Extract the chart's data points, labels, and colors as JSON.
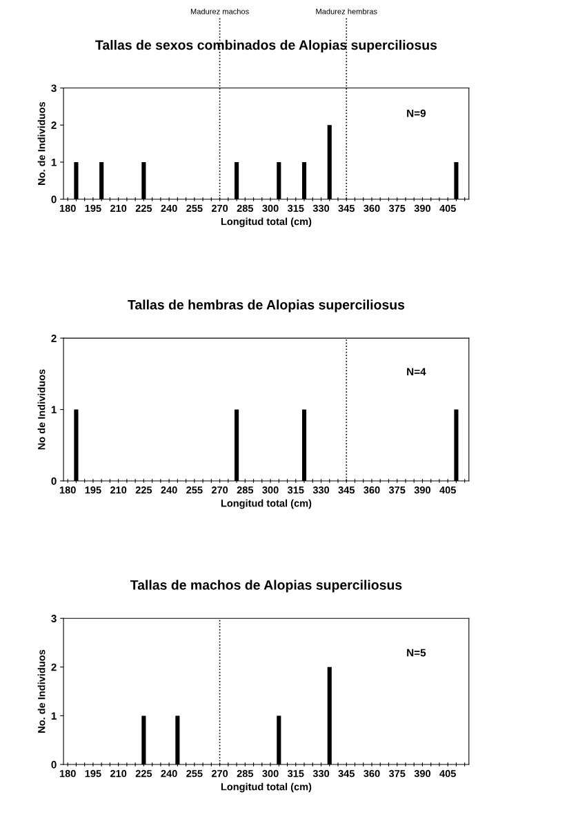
{
  "chart_data": [
    {
      "type": "bar",
      "title": "Tallas de sexos combinados de Alopias superciliosus",
      "xlabel": "Longitud total (cm)",
      "ylabel": "No. de Individuos",
      "categories": [
        "180",
        null,
        null,
        "195",
        null,
        null,
        "210",
        null,
        null,
        "225",
        null,
        null,
        "240",
        null,
        null,
        "255",
        null,
        null,
        "270",
        null,
        null,
        "285",
        null,
        null,
        "300",
        null,
        null,
        "315",
        null,
        null,
        "330",
        null,
        null,
        "345",
        null,
        null,
        "360",
        null,
        null,
        "375",
        null,
        null,
        "390",
        null,
        null,
        "405",
        null,
        null
      ],
      "values": [
        0,
        1,
        0,
        0,
        1,
        0,
        0,
        0,
        0,
        1,
        0,
        0,
        0,
        0,
        0,
        0,
        0,
        0,
        0,
        0,
        1,
        0,
        0,
        0,
        0,
        1,
        0,
        0,
        1,
        0,
        0,
        2,
        0,
        0,
        0,
        0,
        0,
        0,
        0,
        0,
        0,
        0,
        0,
        0,
        0,
        0,
        1,
        0
      ],
      "color": "#000000",
      "ylim": [
        0,
        3
      ],
      "yticks": [
        0,
        1,
        2,
        3
      ],
      "grid": false,
      "legend": false,
      "ref_lines": [
        {
          "axis": "x",
          "value": "270",
          "label": "Madurez machos",
          "color": "#000000",
          "line_style": "dotted"
        },
        {
          "axis": "x",
          "value": "345",
          "label": "Madurez hembras",
          "color": "#000000",
          "line_style": "dotted"
        }
      ],
      "annotations": [
        "N=9"
      ]
    },
    {
      "type": "bar",
      "title": "Tallas de hembras de Alopias superciliosus",
      "xlabel": "Longitud total (cm)",
      "ylabel": "No de Individuos",
      "categories": [
        "180",
        null,
        null,
        "195",
        null,
        null,
        "210",
        null,
        null,
        "225",
        null,
        null,
        "240",
        null,
        null,
        "255",
        null,
        null,
        "270",
        null,
        null,
        "285",
        null,
        null,
        "300",
        null,
        null,
        "315",
        null,
        null,
        "330",
        null,
        null,
        "345",
        null,
        null,
        "360",
        null,
        null,
        "375",
        null,
        null,
        "390",
        null,
        null,
        "405",
        null,
        null
      ],
      "values": [
        0,
        1,
        0,
        0,
        0,
        0,
        0,
        0,
        0,
        0,
        0,
        0,
        0,
        0,
        0,
        0,
        0,
        0,
        0,
        0,
        1,
        0,
        0,
        0,
        0,
        0,
        0,
        0,
        1,
        0,
        0,
        0,
        0,
        0,
        0,
        0,
        0,
        0,
        0,
        0,
        0,
        0,
        0,
        0,
        0,
        0,
        1,
        0
      ],
      "color": "#000000",
      "ylim": [
        0,
        2
      ],
      "yticks": [
        0,
        1,
        2
      ],
      "grid": false,
      "legend": false,
      "ref_lines": [
        {
          "axis": "x",
          "value": "345",
          "color": "#000000",
          "line_style": "dotted"
        }
      ],
      "annotations": [
        "N=4"
      ]
    },
    {
      "type": "bar",
      "title": "Tallas de machos de Alopias superciliosus",
      "xlabel": "Longitud total (cm)",
      "ylabel": "No. de Individuos",
      "categories": [
        "180",
        null,
        null,
        "195",
        null,
        null,
        "210",
        null,
        null,
        "225",
        null,
        null,
        "240",
        null,
        null,
        "255",
        null,
        null,
        "270",
        null,
        null,
        "285",
        null,
        null,
        "300",
        null,
        null,
        "315",
        null,
        null,
        "330",
        null,
        null,
        "345",
        null,
        null,
        "360",
        null,
        null,
        "375",
        null,
        null,
        "390",
        null,
        null,
        "405",
        null,
        null
      ],
      "values": [
        0,
        0,
        0,
        0,
        0,
        0,
        0,
        0,
        0,
        1,
        0,
        0,
        0,
        1,
        0,
        0,
        0,
        0,
        0,
        0,
        0,
        0,
        0,
        0,
        0,
        1,
        0,
        0,
        0,
        0,
        0,
        2,
        0,
        0,
        0,
        0,
        0,
        0,
        0,
        0,
        0,
        0,
        0,
        0,
        0,
        0,
        0,
        0
      ],
      "color": "#000000",
      "ylim": [
        0,
        3
      ],
      "yticks": [
        0,
        1,
        2,
        3
      ],
      "grid": false,
      "legend": false,
      "ref_lines": [
        {
          "axis": "x",
          "value": "270",
          "color": "#000000",
          "line_style": "dotted"
        }
      ],
      "annotations": [
        "N=5"
      ]
    }
  ]
}
